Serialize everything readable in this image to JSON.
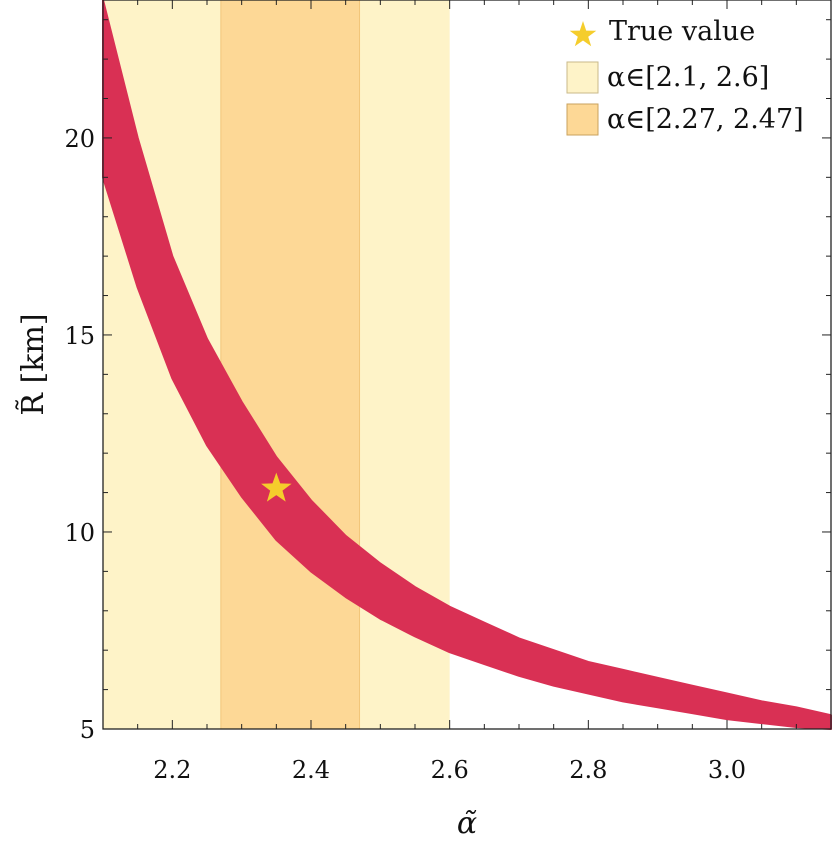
{
  "chart_data": {
    "type": "scatter",
    "title": "",
    "xlabel": "α̃",
    "ylabel": "R̃ [km]",
    "xlim": [
      2.1,
      3.15
    ],
    "ylim": [
      5,
      23.5
    ],
    "x_ticks": [
      {
        "value": 2.2,
        "label": "2.2"
      },
      {
        "value": 2.4,
        "label": "2.4"
      },
      {
        "value": 2.6,
        "label": "2.6"
      },
      {
        "value": 2.8,
        "label": "2.8"
      },
      {
        "value": 3.0,
        "label": "3.0"
      }
    ],
    "y_ticks": [
      {
        "value": 5,
        "label": "5"
      },
      {
        "value": 10,
        "label": "10"
      },
      {
        "value": 15,
        "label": "15"
      },
      {
        "value": 20,
        "label": "20"
      }
    ],
    "band_series": {
      "color": "#d93054",
      "x": [
        2.1,
        2.15,
        2.2,
        2.25,
        2.3,
        2.35,
        2.4,
        2.45,
        2.5,
        2.55,
        2.6,
        2.65,
        2.7,
        2.75,
        2.8,
        2.85,
        2.9,
        2.95,
        3.0,
        3.05,
        3.1,
        3.15
      ],
      "y_upper": [
        23.5,
        20.0,
        17.0,
        14.9,
        13.3,
        11.9,
        10.8,
        9.9,
        9.2,
        8.6,
        8.1,
        7.7,
        7.3,
        7.0,
        6.7,
        6.5,
        6.3,
        6.1,
        5.9,
        5.7,
        5.55,
        5.35
      ],
      "y_lower": [
        19.0,
        16.2,
        13.9,
        12.2,
        10.9,
        9.8,
        9.0,
        8.35,
        7.8,
        7.35,
        6.95,
        6.65,
        6.35,
        6.1,
        5.9,
        5.7,
        5.55,
        5.4,
        5.25,
        5.15,
        5.05,
        5.0
      ]
    },
    "regions": [
      {
        "x_range": [
          2.1,
          2.6
        ],
        "color": "#fef3c8",
        "label": "α∈[2.1, 2.6]"
      },
      {
        "x_range": [
          2.27,
          2.47
        ],
        "color": "#fdd896",
        "label": "α∈[2.27, 2.47]"
      }
    ],
    "marker": {
      "x": 2.35,
      "y": 11.1,
      "color": "#f5cd2c",
      "label": "True value"
    },
    "legend": {
      "position": "top-right"
    },
    "grid": false
  }
}
